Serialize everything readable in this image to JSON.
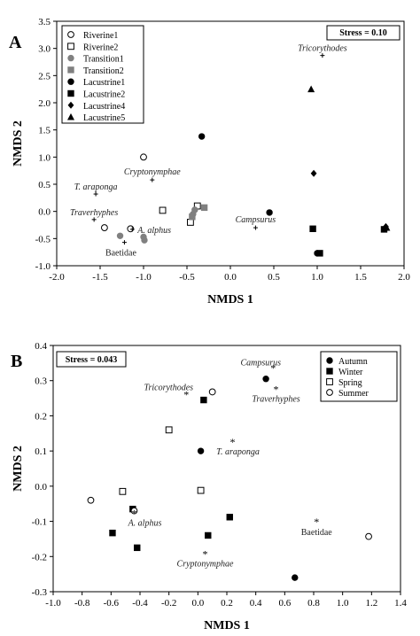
{
  "chart_data": [
    {
      "type": "scatter",
      "panel": "A",
      "xlabel": "NMDS 1",
      "ylabel": "NMDS 2",
      "xlim": [
        -2.0,
        2.0
      ],
      "ylim": [
        -1.0,
        3.5
      ],
      "xticks": [
        "-2.0",
        "-1.5",
        "-1.0",
        "-0.5",
        "0.0",
        "0.5",
        "1.0",
        "1.5",
        "2.0"
      ],
      "yticks": [
        "-1.0",
        "-0.5",
        "0.0",
        "0.5",
        "1.0",
        "1.5",
        "2.0",
        "2.5",
        "3.0",
        "3.5"
      ],
      "stress_label": "Stress = 0.10",
      "legend_position": "top-left",
      "series": [
        {
          "name": "Riverine1",
          "marker": "circle-open",
          "color": "#000000",
          "points": [
            [
              -1.0,
              1.0
            ],
            [
              -1.45,
              -0.3
            ],
            [
              -1.15,
              -0.32
            ]
          ]
        },
        {
          "name": "Riverine2",
          "marker": "square-open",
          "color": "#000000",
          "points": [
            [
              -0.78,
              0.02
            ],
            [
              -0.38,
              0.1
            ],
            [
              -0.46,
              -0.2
            ]
          ]
        },
        {
          "name": "Transition1",
          "marker": "circle-filled",
          "color": "#808080",
          "points": [
            [
              -1.27,
              -0.45
            ],
            [
              -1.0,
              -0.47
            ],
            [
              -0.99,
              -0.53
            ],
            [
              -0.43,
              -0.05
            ],
            [
              -0.41,
              0.03
            ]
          ]
        },
        {
          "name": "Transition2",
          "marker": "square-filled",
          "color": "#808080",
          "points": [
            [
              -0.3,
              0.07
            ],
            [
              -0.44,
              -0.1
            ]
          ]
        },
        {
          "name": "Lacustrine1",
          "marker": "circle-filled",
          "color": "#000000",
          "points": [
            [
              -0.33,
              1.38
            ],
            [
              0.45,
              -0.02
            ],
            [
              1.0,
              -0.77
            ]
          ]
        },
        {
          "name": "Lacustrine2",
          "marker": "square-filled",
          "color": "#000000",
          "points": [
            [
              0.95,
              -0.32
            ],
            [
              1.03,
              -0.77
            ],
            [
              1.77,
              -0.33
            ]
          ]
        },
        {
          "name": "Lacustrine4",
          "marker": "diamond-filled",
          "color": "#000000",
          "points": [
            [
              0.96,
              0.7
            ],
            [
              1.79,
              -0.28
            ]
          ]
        },
        {
          "name": "Lacustrine5",
          "marker": "triangle-filled",
          "color": "#000000",
          "points": [
            [
              0.93,
              2.25
            ],
            [
              1.8,
              -0.3
            ]
          ]
        }
      ],
      "taxa": [
        {
          "label": "Tricorythodes",
          "x": 1.06,
          "y": 2.87,
          "italic": true
        },
        {
          "label": "Cryptonymphae",
          "x": -0.9,
          "y": 0.58,
          "italic": true
        },
        {
          "label": "T. araponga",
          "x": -1.55,
          "y": 0.32,
          "italic": true
        },
        {
          "label": "Traverhyphes",
          "x": -1.57,
          "y": -0.15,
          "italic": true
        },
        {
          "label": "A. alphus",
          "x": -1.13,
          "y": -0.33,
          "italic": true
        },
        {
          "label": "Campsurus",
          "x": 0.29,
          "y": -0.3,
          "italic": true
        },
        {
          "label": "Baetidae",
          "x": -1.22,
          "y": -0.57,
          "italic": false
        }
      ]
    },
    {
      "type": "scatter",
      "panel": "B",
      "xlabel": "NMDS 1",
      "ylabel": "NMDS 2",
      "xlim": [
        -1.0,
        1.4
      ],
      "ylim": [
        -0.3,
        0.4
      ],
      "xticks": [
        "-1.0",
        "-0.8",
        "-0.6",
        "-0.4",
        "-0.2",
        "0.0",
        "0.2",
        "0.4",
        "0.6",
        "0.8",
        "1.0",
        "1.2",
        "1.4"
      ],
      "yticks": [
        "-0.3",
        "-0.2",
        "-0.1",
        "0.0",
        "0.1",
        "0.2",
        "0.3",
        "0.4"
      ],
      "stress_label": "Stress = 0.043",
      "legend_position": "top-right",
      "series": [
        {
          "name": "Autumn",
          "marker": "circle-filled",
          "color": "#000000",
          "points": [
            [
              0.47,
              0.305
            ],
            [
              0.02,
              0.1
            ],
            [
              0.67,
              -0.26
            ]
          ]
        },
        {
          "name": "Winter",
          "marker": "square-filled",
          "color": "#000000",
          "points": [
            [
              0.04,
              0.245
            ],
            [
              -0.45,
              -0.065
            ],
            [
              -0.59,
              -0.133
            ],
            [
              -0.42,
              -0.175
            ],
            [
              0.22,
              -0.088
            ],
            [
              0.07,
              -0.14
            ]
          ]
        },
        {
          "name": "Spring",
          "marker": "square-open",
          "color": "#000000",
          "points": [
            [
              -0.2,
              0.16
            ],
            [
              -0.52,
              -0.015
            ],
            [
              0.02,
              -0.012
            ]
          ]
        },
        {
          "name": "Summer",
          "marker": "circle-open",
          "color": "#000000",
          "points": [
            [
              0.1,
              0.268
            ],
            [
              -0.74,
              -0.04
            ],
            [
              1.18,
              -0.143
            ],
            [
              -0.44,
              -0.07
            ]
          ]
        }
      ],
      "taxa": [
        {
          "label": "Campsurus",
          "x": 0.52,
          "y": 0.338,
          "italic": true
        },
        {
          "label": "Tricorythodes",
          "x": -0.08,
          "y": 0.263,
          "italic": true
        },
        {
          "label": "Traverhyphes",
          "x": 0.54,
          "y": 0.278,
          "italic": true
        },
        {
          "label": "T. araponga",
          "x": 0.24,
          "y": 0.128,
          "italic": true
        },
        {
          "label": "A. alphus",
          "x": -0.44,
          "y": -0.075,
          "italic": true
        },
        {
          "label": "Baetidae",
          "x": 0.82,
          "y": -0.098,
          "italic": false
        },
        {
          "label": "Cryptonymphae",
          "x": 0.05,
          "y": -0.19,
          "italic": true
        }
      ]
    }
  ]
}
